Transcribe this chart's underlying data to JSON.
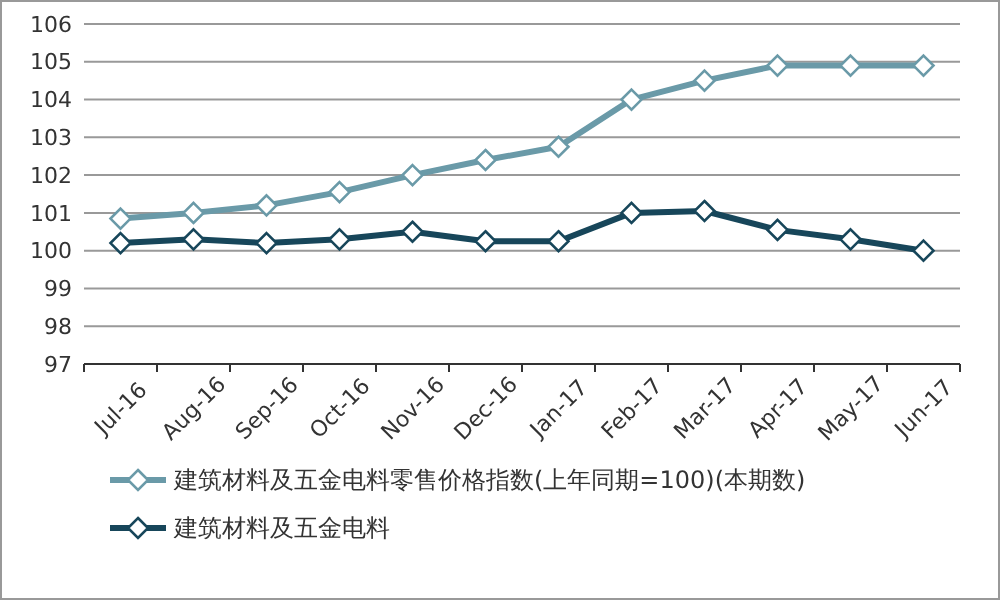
{
  "chart_data": {
    "type": "line",
    "categories": [
      "Jul-16",
      "Aug-16",
      "Sep-16",
      "Oct-16",
      "Nov-16",
      "Dec-16",
      "Jan-17",
      "Feb-17",
      "Mar-17",
      "Apr-17",
      "May-17",
      "Jun-17"
    ],
    "series": [
      {
        "name": "建筑材料及五金电料零售价格指数(上年同期=100)(本期数)",
        "color": "#6a9aa8",
        "values": [
          100.85,
          101.0,
          101.2,
          101.55,
          102.0,
          102.4,
          102.75,
          104.0,
          104.5,
          104.9,
          104.9,
          104.9
        ]
      },
      {
        "name": "建筑材料及五金电料",
        "color": "#17465a",
        "values": [
          100.2,
          100.3,
          100.2,
          100.3,
          100.5,
          100.25,
          100.25,
          101.0,
          101.05,
          100.55,
          100.3,
          100.0
        ]
      }
    ],
    "ylim": [
      97,
      106
    ],
    "yticks": [
      97,
      98,
      99,
      100,
      101,
      102,
      103,
      104,
      105,
      106
    ],
    "grid": "y",
    "legend": "bottom",
    "marker": "diamond",
    "line_style": "solid"
  }
}
